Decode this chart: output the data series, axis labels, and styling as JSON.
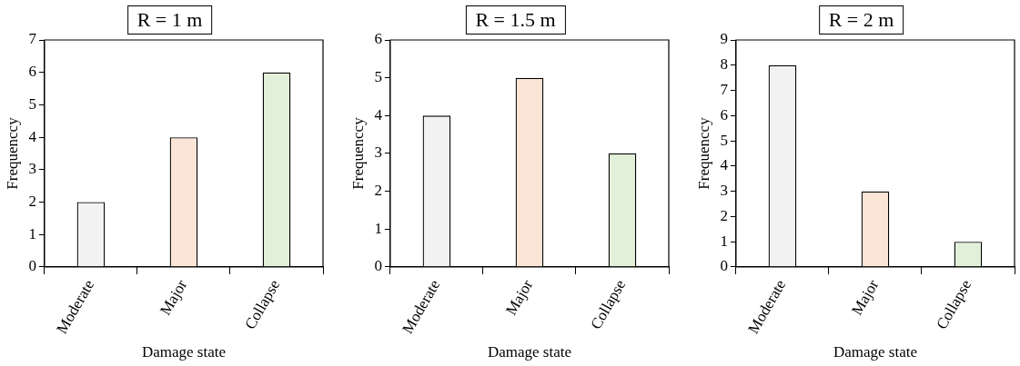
{
  "chart_data": [
    {
      "type": "bar",
      "title": "R = 1 m",
      "xlabel": "Damage state",
      "ylabel": "Frequenccy",
      "categories": [
        "Moderate",
        "Major",
        "Collapse"
      ],
      "values": [
        2,
        4,
        6
      ],
      "colors": [
        "#f2f2f2",
        "#fbe5d6",
        "#e2f0d9"
      ],
      "ylim": [
        0,
        7
      ],
      "yticks": [
        0,
        1,
        2,
        3,
        4,
        5,
        6,
        7
      ]
    },
    {
      "type": "bar",
      "title": "R = 1.5 m",
      "xlabel": "Damage state",
      "ylabel": "Frequenccy",
      "categories": [
        "Moderate",
        "Major",
        "Collapse"
      ],
      "values": [
        4,
        5,
        3
      ],
      "colors": [
        "#f2f2f2",
        "#fbe5d6",
        "#e2f0d9"
      ],
      "ylim": [
        0,
        6
      ],
      "yticks": [
        0,
        1,
        2,
        3,
        4,
        5,
        6
      ]
    },
    {
      "type": "bar",
      "title": "R = 2 m",
      "xlabel": "Damage state",
      "ylabel": "Frequenccy",
      "categories": [
        "Moderate",
        "Major",
        "Collapse"
      ],
      "values": [
        8,
        3,
        1
      ],
      "colors": [
        "#f2f2f2",
        "#fbe5d6",
        "#e2f0d9"
      ],
      "ylim": [
        0,
        9
      ],
      "yticks": [
        0,
        1,
        2,
        3,
        4,
        5,
        6,
        7,
        8,
        9
      ]
    }
  ]
}
